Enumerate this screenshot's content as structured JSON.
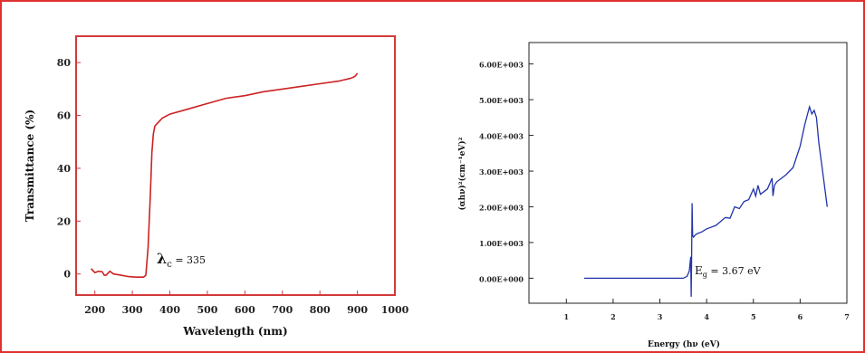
{
  "chart_data": [
    {
      "type": "line",
      "xlabel": "Wavelength (nm)",
      "ylabel": "Transmittance (%)",
      "xlim": [
        150,
        1000
      ],
      "ylim": [
        -8,
        90
      ],
      "xticks": [
        "200",
        "300",
        "400",
        "500",
        "600",
        "700",
        "800",
        "900",
        "1000"
      ],
      "yticks": [
        "0",
        "20",
        "40",
        "60",
        "80"
      ],
      "annotation": {
        "symbol": "λ",
        "sub": "c",
        "text": " = 335"
      },
      "color": "#cc2222",
      "series": [
        {
          "x": [
            190,
            200,
            210,
            220,
            225,
            230,
            240,
            250,
            270,
            290,
            310,
            330,
            336,
            342,
            348,
            352,
            356,
            360,
            370,
            380,
            400,
            450,
            500,
            550,
            600,
            650,
            700,
            750,
            800,
            850,
            880,
            890,
            895,
            900
          ],
          "y": [
            2,
            0.5,
            1,
            0.8,
            -0.5,
            -0.5,
            1,
            0,
            -0.5,
            -1,
            -1.2,
            -1.2,
            -0.5,
            10,
            30,
            46,
            53,
            56,
            57.5,
            59,
            60.5,
            62.5,
            64.5,
            66.5,
            67.5,
            69,
            70,
            71,
            72,
            73,
            74,
            74.5,
            75,
            76
          ]
        }
      ]
    },
    {
      "type": "line",
      "xlabel": "Energy (hν (eV)",
      "ylabel": "(αhν)²(cm⁻¹eV)²",
      "xlim": [
        0.2,
        7
      ],
      "ylim": [
        -700,
        6600
      ],
      "xticks": [
        "1",
        "2",
        "3",
        "4",
        "5",
        "6",
        "7"
      ],
      "yticks": [
        "0.00E+000",
        "1.00E+003",
        "2.00E+003",
        "3.00E+003",
        "4.00E+003",
        "5.00E+003",
        "6.00E+003"
      ],
      "annotation": {
        "symbol": "E",
        "sub": "g",
        "text": " = 3.67 eV"
      },
      "color": "#2233aa",
      "series": [
        {
          "x": [
            1.38,
            2.0,
            3.0,
            3.5,
            3.58,
            3.63,
            3.66,
            3.67,
            3.68,
            3.69,
            3.7,
            3.72,
            3.75,
            3.8,
            3.9,
            4.0,
            4.2,
            4.4,
            4.5,
            4.6,
            4.7,
            4.8,
            4.9,
            5.0,
            5.05,
            5.1,
            5.15,
            5.2,
            5.3,
            5.4,
            5.42,
            5.45,
            5.5,
            5.7,
            5.85,
            6.0,
            6.1,
            6.2,
            6.25,
            6.3,
            6.35,
            6.4,
            6.5,
            6.58
          ],
          "y": [
            0,
            0,
            0,
            0,
            50,
            200,
            600,
            -520,
            600,
            2100,
            1200,
            1150,
            1200,
            1250,
            1300,
            1380,
            1480,
            1700,
            1680,
            2000,
            1950,
            2150,
            2200,
            2500,
            2300,
            2600,
            2350,
            2400,
            2500,
            2800,
            2300,
            2600,
            2700,
            2900,
            3100,
            3700,
            4300,
            4800,
            4600,
            4700,
            4500,
            3800,
            2800,
            2000
          ]
        }
      ]
    }
  ]
}
